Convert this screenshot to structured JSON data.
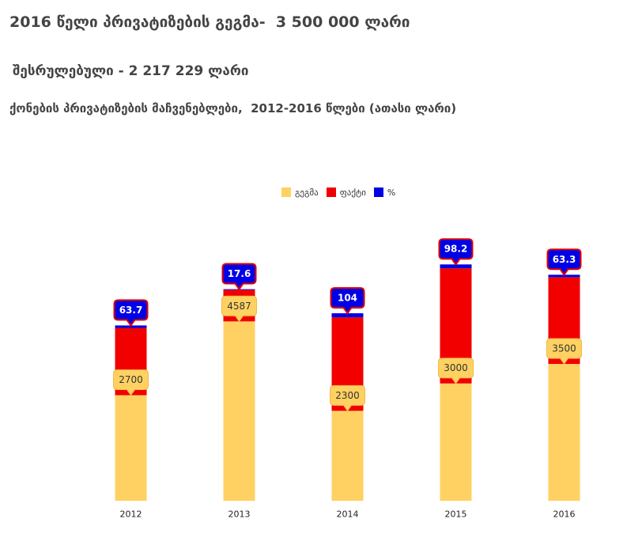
{
  "header": {
    "plan_line": "2016 წელი პრივატიზების გეგმა-  3 500 000 ლარი",
    "done_line": "შესრულებული - 2 217 229 ლარი"
  },
  "chart_data": {
    "type": "bar",
    "stacked": true,
    "title": "ქონების პრივატიზების მაჩვენებლები,  2012-2016 წლები (ათასი ლარი)",
    "categories": [
      "2012",
      "2013",
      "2014",
      "2015",
      "2016"
    ],
    "series": [
      {
        "name": "გეგმა",
        "color": "#FFD162",
        "values": [
          2700,
          4587,
          2300,
          3000,
          3500
        ],
        "data_labels": true
      },
      {
        "name": "ფაქტი",
        "color": "#F20000",
        "values": [
          1720,
          807,
          2392,
          2946,
          2217
        ],
        "data_labels": false
      },
      {
        "name": "%",
        "color": "#0000E6",
        "values": [
          63.7,
          17.6,
          104,
          98.2,
          63.3
        ],
        "data_labels": true
      }
    ],
    "ylim": [
      0,
      7000
    ],
    "grid": false,
    "legend": "top-center"
  }
}
